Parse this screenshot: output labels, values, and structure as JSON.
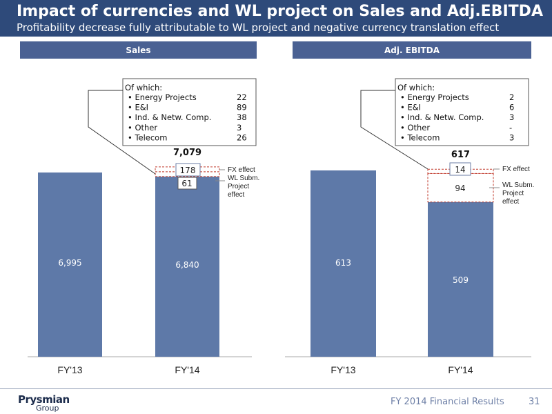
{
  "header": {
    "title": "Impact of currencies and WL project on Sales and Adj.EBITDA",
    "subtitle": "Profitability decrease fully attributable to WL project and negative currency translation effect"
  },
  "colors": {
    "header_bg": "#2e4a7a",
    "panel_header_bg": "#4a6193",
    "bar": "#5e79a8",
    "box_border": "#c0392b"
  },
  "footer": {
    "brand": "Prysmian",
    "brand_sub": "Group",
    "doc": "FY 2014 Financial Results",
    "page": "31"
  },
  "chart_data": [
    {
      "type": "bar",
      "title": "Sales",
      "categories": [
        "FY'13",
        "FY'14"
      ],
      "values": [
        6995,
        6840
      ],
      "value_labels": [
        "6,995",
        "6,840"
      ],
      "stacked_on_FY14": [
        {
          "name": "WL Subm. Project effect",
          "value": 61,
          "label": "61"
        },
        {
          "name": "FX effect",
          "value": 178,
          "label": "178"
        }
      ],
      "total_label": "7,079",
      "callout_title": "Of which:",
      "callout_items": [
        {
          "label": "Energy Projects",
          "value": "22"
        },
        {
          "label": "E&I",
          "value": "89"
        },
        {
          "label": "Ind. & Netw. Comp.",
          "value": "38"
        },
        {
          "label": "Other",
          "value": "3"
        },
        {
          "label": "Telecom",
          "value": "26"
        }
      ]
    },
    {
      "type": "bar",
      "title": "Adj. EBITDA",
      "categories": [
        "FY'13",
        "FY'14"
      ],
      "values": [
        613,
        509
      ],
      "value_labels": [
        "613",
        "509"
      ],
      "stacked_on_FY14": [
        {
          "name": "WL Subm. Project effect",
          "value": 94,
          "label": "94"
        },
        {
          "name": "FX effect",
          "value": 14,
          "label": "14"
        }
      ],
      "total_label": "617",
      "callout_title": "Of which:",
      "callout_items": [
        {
          "label": "Energy Projects",
          "value": "2"
        },
        {
          "label": "E&I",
          "value": "6"
        },
        {
          "label": "Ind. & Netw. Comp.",
          "value": "3"
        },
        {
          "label": "Other",
          "value": "-"
        },
        {
          "label": "Telecom",
          "value": "3"
        }
      ]
    }
  ]
}
